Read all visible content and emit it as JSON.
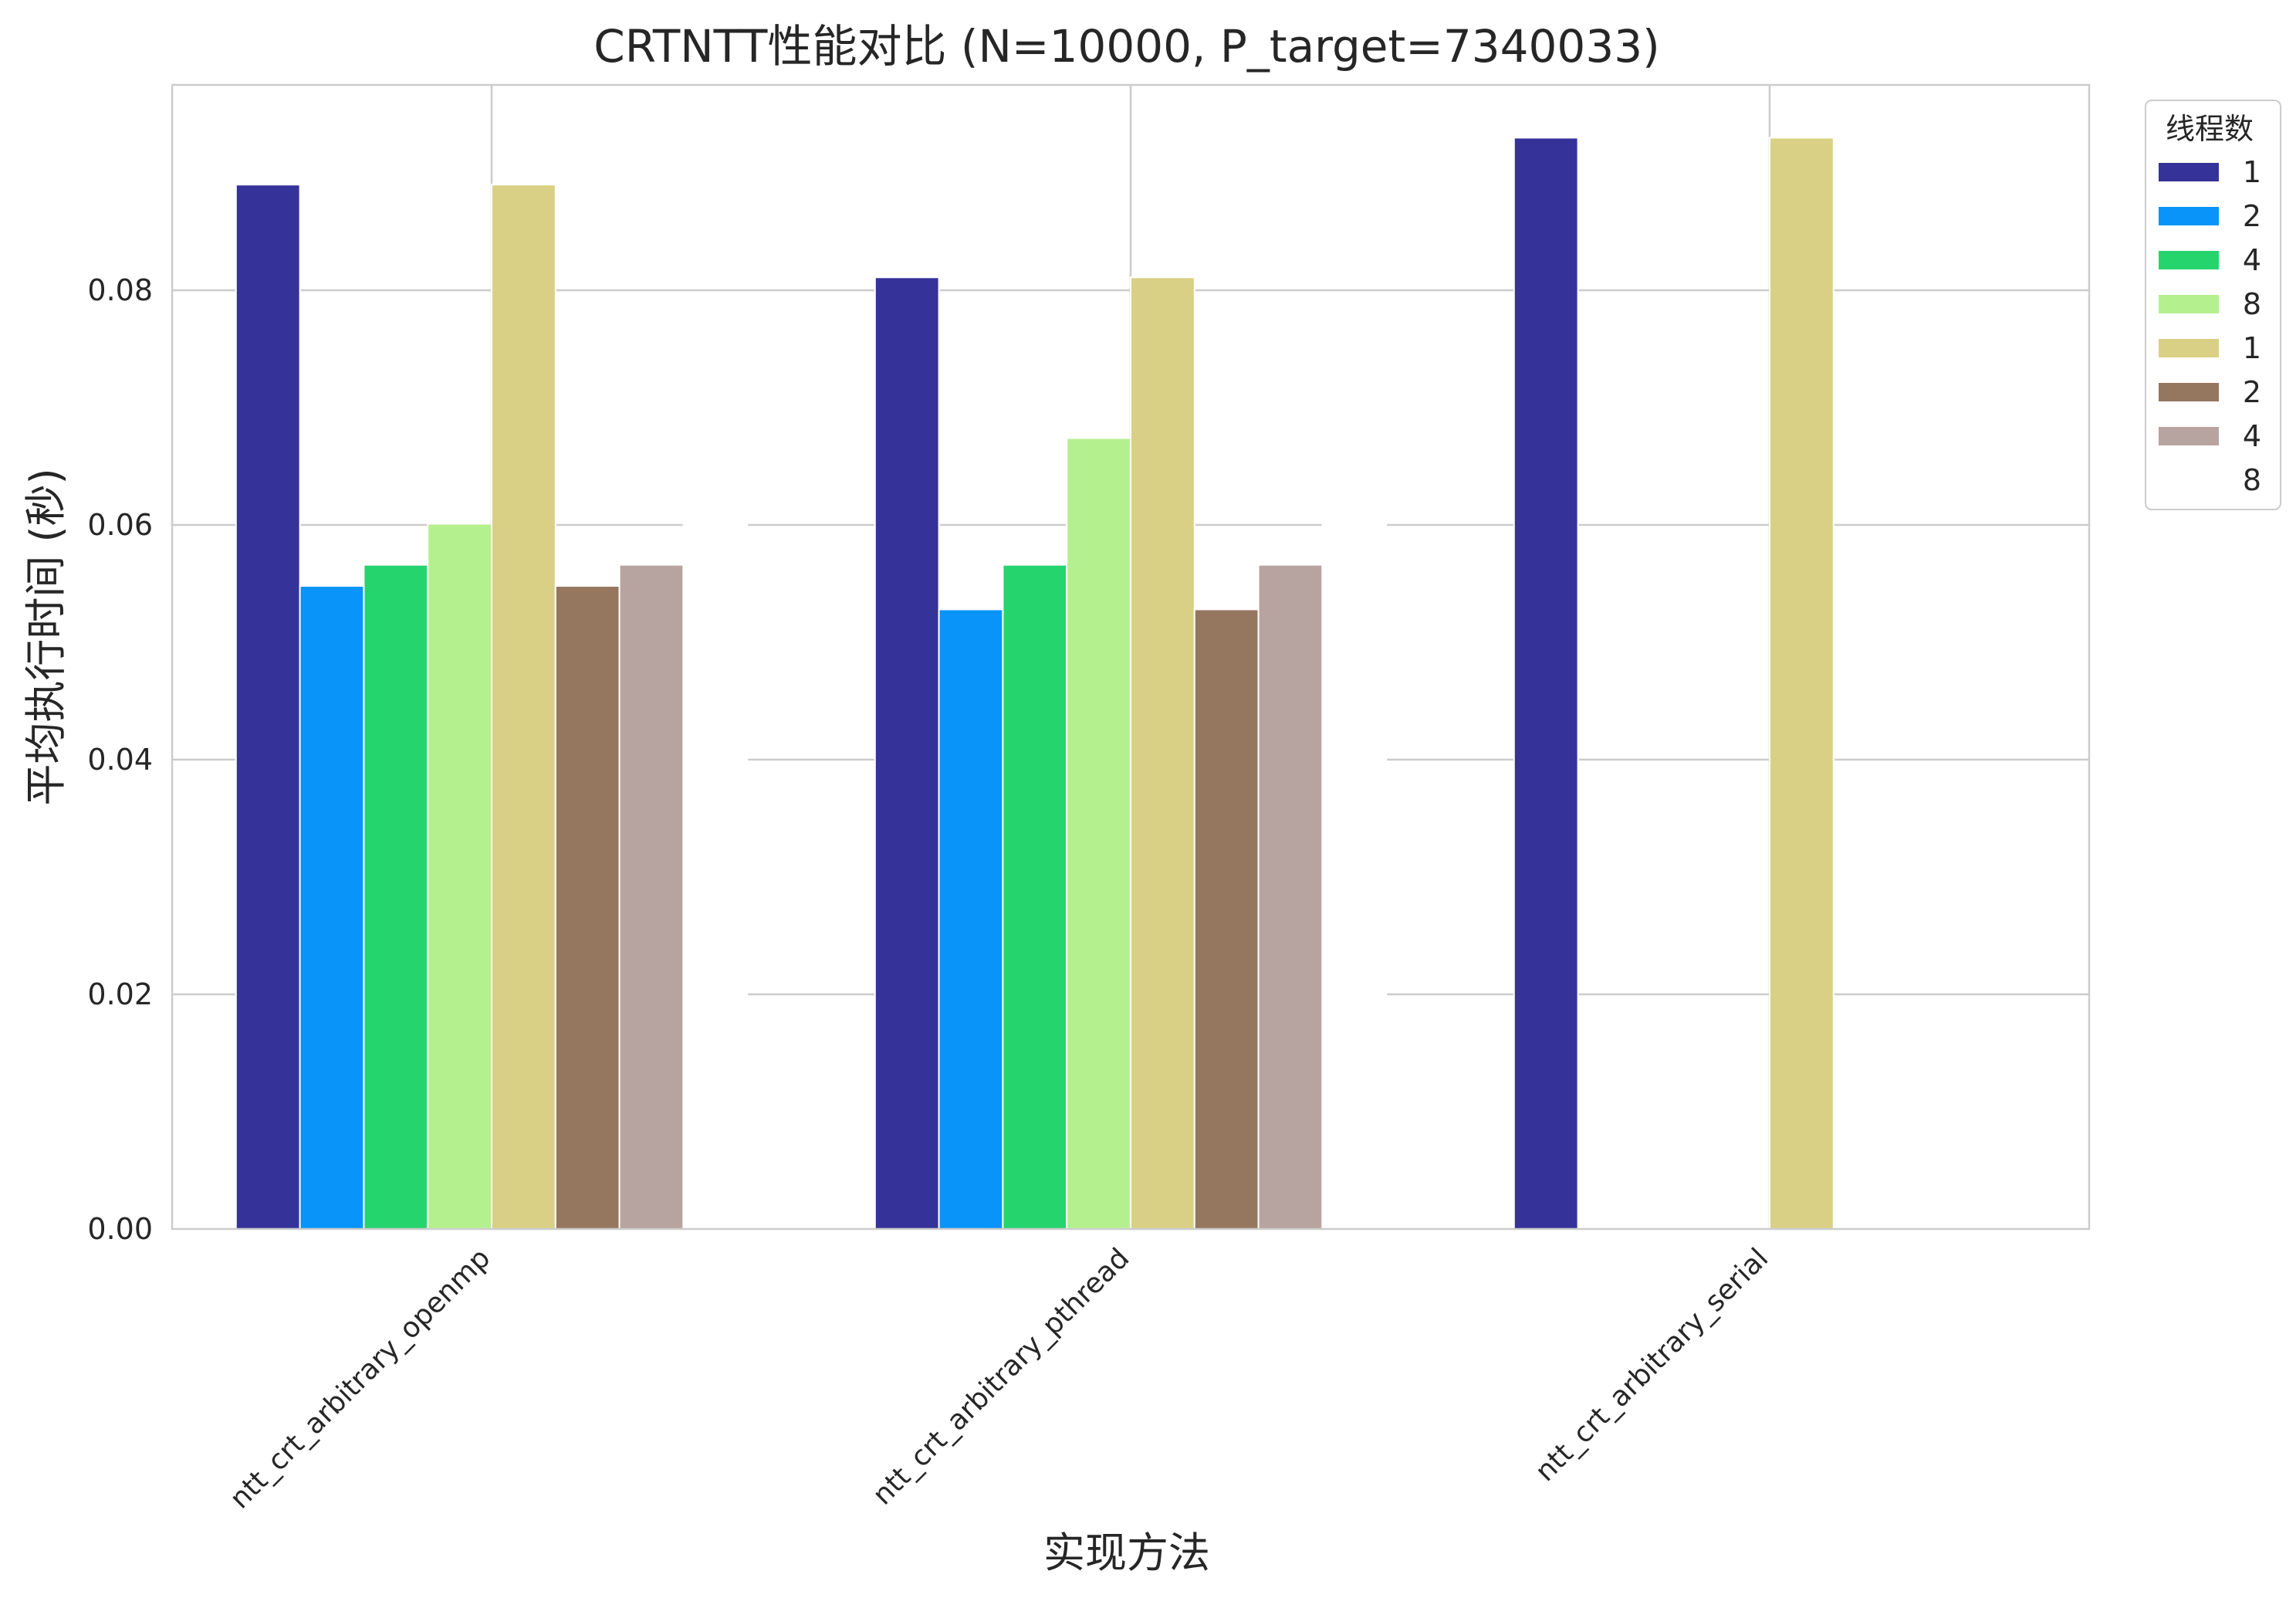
{
  "chart_data": {
    "type": "bar",
    "title": "CRTNTT性能对比 (N=10000, P_target=7340033)",
    "xlabel": "实现方法",
    "ylabel": "平均执行时间 (秒)",
    "categories": [
      "ntt_crt_arbitrary_openmp",
      "ntt_crt_arbitrary_pthread",
      "ntt_crt_arbitrary_serial"
    ],
    "ylim": [
      0,
      0.0975
    ],
    "yticks": [
      "0.00",
      "0.02",
      "0.04",
      "0.06",
      "0.08"
    ],
    "ytick_values": [
      0,
      0.02,
      0.04,
      0.06,
      0.08
    ],
    "grid": true,
    "legend_position": "top-right outside",
    "legend_title": "线程数",
    "series": [
      {
        "name": "1",
        "color": "#353399",
        "values": [
          0.089,
          0.0811,
          0.093
        ]
      },
      {
        "name": "2",
        "color": "#0994F9",
        "values": [
          0.0548,
          0.0528,
          null
        ]
      },
      {
        "name": "4",
        "color": "#26D46D",
        "values": [
          0.0566,
          0.0566,
          null
        ]
      },
      {
        "name": "8",
        "color": "#B5F08F",
        "values": [
          0.0601,
          0.0674,
          null
        ]
      },
      {
        "name": "1",
        "color": "#D9D085",
        "values": [
          0.089,
          0.0811,
          0.093
        ]
      },
      {
        "name": "2",
        "color": "#95765F",
        "values": [
          0.0548,
          0.0528,
          null
        ]
      },
      {
        "name": "4",
        "color": "#B7A39F",
        "values": [
          0.0566,
          0.0566,
          null
        ]
      },
      {
        "name": "8",
        "color": "#FFFFFF",
        "values": [
          0.0601,
          0.0674,
          null
        ]
      }
    ]
  }
}
